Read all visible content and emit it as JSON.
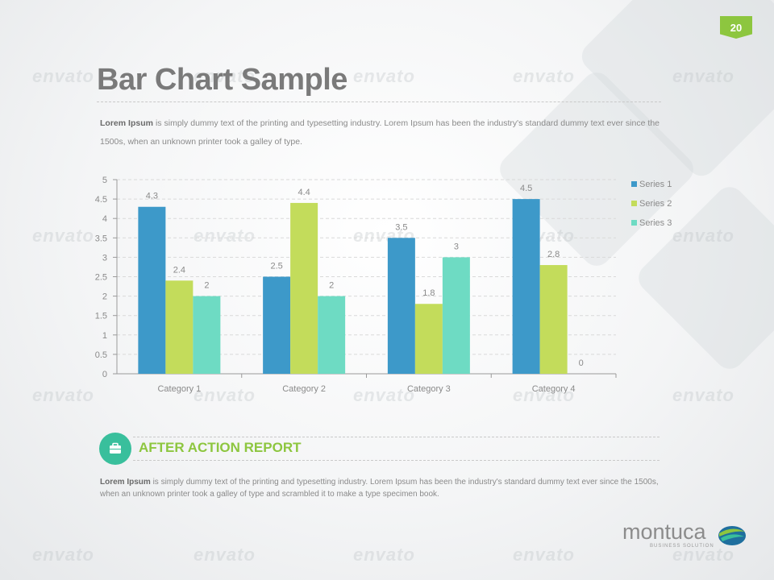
{
  "page_number": "20",
  "title": "Bar Chart Sample",
  "intro": {
    "bold": "Lorem Ipsum",
    "text": " is simply dummy text of the printing and typesetting industry. Lorem Ipsum has been the industry's standard dummy text ever since the 1500s, when an unknown printer took a galley of type."
  },
  "watermark_text": "envato",
  "chart_data": {
    "type": "bar",
    "categories": [
      "Category 1",
      "Category 2",
      "Category 3",
      "Category 4"
    ],
    "series": [
      {
        "name": "Series 1",
        "values": [
          4.3,
          2.5,
          3.5,
          4.5
        ],
        "color": "#3d99c9"
      },
      {
        "name": "Series 2",
        "values": [
          2.4,
          4.4,
          1.8,
          2.8
        ],
        "color": "#c3dc5b"
      },
      {
        "name": "Series 3",
        "values": [
          2,
          2,
          3,
          0
        ],
        "color": "#6edbc3"
      }
    ],
    "ylim": [
      0,
      5
    ],
    "yticks": [
      "0",
      "0.5",
      "1",
      "1.5",
      "2",
      "2.5",
      "3",
      "3.5",
      "4",
      "4.5",
      "5"
    ],
    "grid": true,
    "legend_position": "right"
  },
  "report": {
    "title": "AFTER ACTION REPORT",
    "bold": "Lorem Ipsum",
    "text": " is simply dummy text of the printing and typesetting industry. Lorem Ipsum has been the industry's standard dummy text ever since the 1500s, when an unknown printer took a galley of type and scrambled it to make a type specimen book.",
    "icon": "briefcase-icon"
  },
  "logo": {
    "name": "montuca",
    "tagline": "BUSINESS SOLUTION"
  }
}
